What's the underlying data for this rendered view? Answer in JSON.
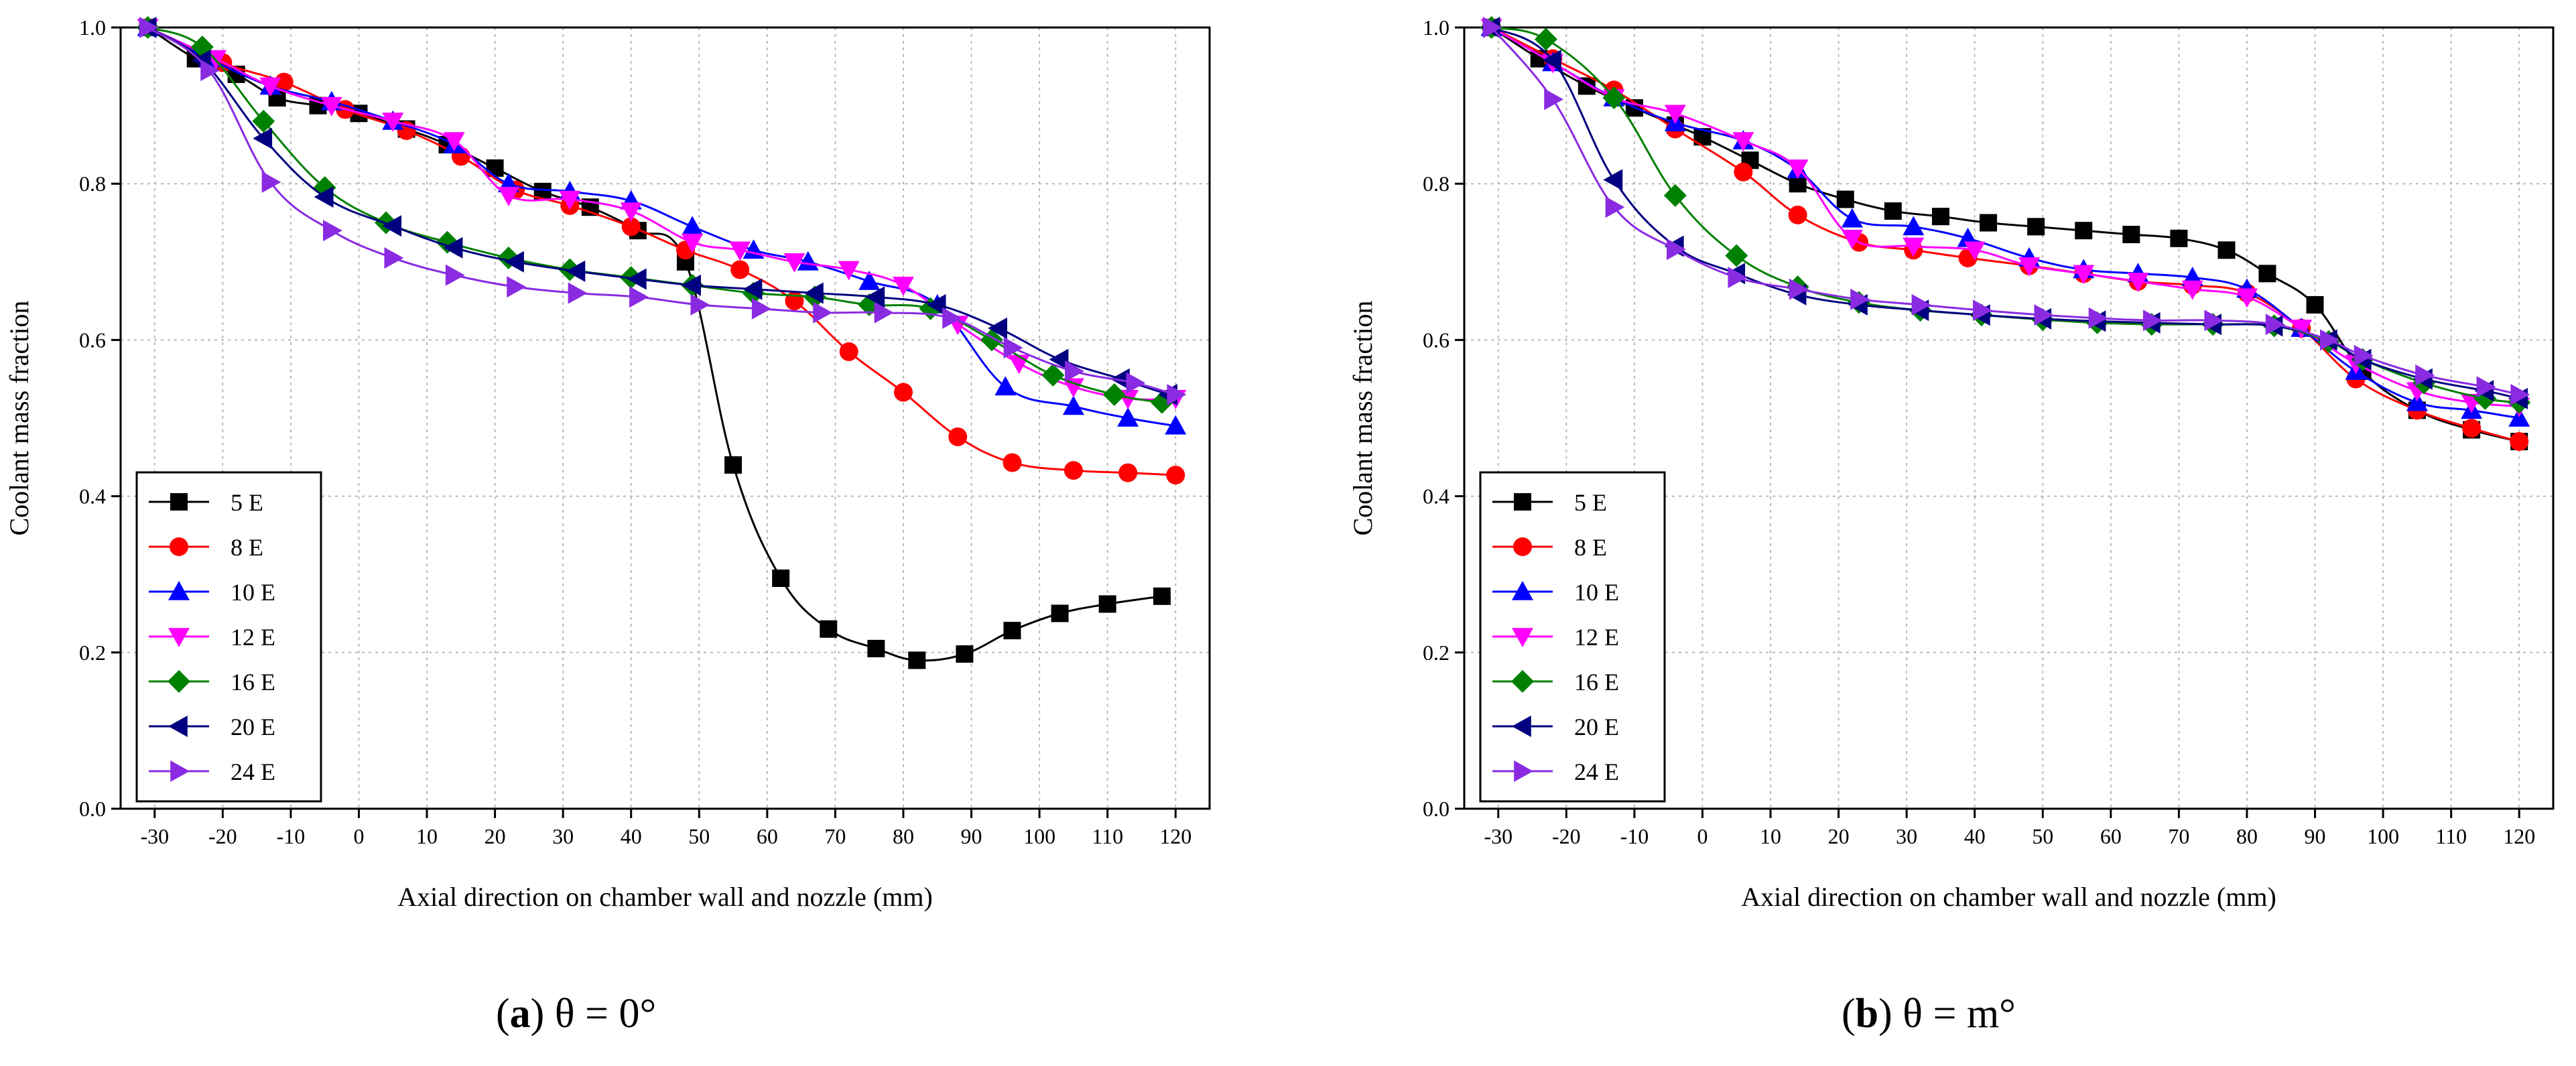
{
  "captions": [
    {
      "letter": "a",
      "text": " θ = 0°"
    },
    {
      "letter": "b",
      "text": " θ = m°"
    }
  ],
  "chart_data": [
    {
      "type": "line",
      "xlabel": "Axial direction on chamber wall and nozzle (mm)",
      "ylabel": "Coolant mass fraction",
      "xlim": [
        -35,
        125
      ],
      "ylim": [
        0,
        1
      ],
      "xticks": [
        -30,
        -20,
        -10,
        0,
        10,
        20,
        30,
        40,
        50,
        60,
        70,
        80,
        90,
        100,
        110,
        120
      ],
      "yticks": [
        0.0,
        0.2,
        0.4,
        0.6,
        0.8,
        1.0
      ],
      "grid": true,
      "legend_position": "bottom-left",
      "series": [
        {
          "name": "5 E",
          "color": "#000000",
          "marker": "square",
          "x": [
            -31,
            -24,
            -18,
            -12,
            -6,
            0,
            7,
            13,
            20,
            27,
            34,
            41,
            48,
            55,
            62,
            69,
            76,
            82,
            89,
            96,
            103,
            110,
            118
          ],
          "y": [
            1.0,
            0.96,
            0.94,
            0.91,
            0.9,
            0.89,
            0.87,
            0.85,
            0.82,
            0.79,
            0.77,
            0.74,
            0.7,
            0.44,
            0.295,
            0.23,
            0.205,
            0.19,
            0.198,
            0.228,
            0.25,
            0.262,
            0.272
          ]
        },
        {
          "name": "8 E",
          "color": "#ff0000",
          "marker": "circle",
          "x": [
            -31,
            -20,
            -11,
            -2,
            7,
            15,
            23,
            31,
            40,
            48,
            56,
            64,
            72,
            80,
            88,
            96,
            105,
            113,
            120
          ],
          "y": [
            1.0,
            0.955,
            0.93,
            0.895,
            0.868,
            0.835,
            0.792,
            0.772,
            0.745,
            0.715,
            0.69,
            0.65,
            0.585,
            0.533,
            0.476,
            0.443,
            0.433,
            0.43,
            0.427
          ]
        },
        {
          "name": "10 E",
          "color": "#0000ff",
          "marker": "triangle-up",
          "x": [
            -31,
            -22,
            -13,
            -4,
            5,
            14,
            22,
            31,
            40,
            49,
            58,
            66,
            75,
            85,
            95,
            105,
            113,
            120
          ],
          "y": [
            1.0,
            0.96,
            0.925,
            0.905,
            0.88,
            0.85,
            0.8,
            0.79,
            0.778,
            0.745,
            0.715,
            0.7,
            0.675,
            0.645,
            0.54,
            0.515,
            0.5,
            0.49
          ]
        },
        {
          "name": "12 E",
          "color": "#ff00ff",
          "marker": "triangle-down",
          "x": [
            -31,
            -21,
            -13,
            -4,
            5,
            14,
            22,
            31,
            40,
            49,
            56,
            64,
            72,
            80,
            88,
            97,
            105,
            113,
            120
          ],
          "y": [
            1.0,
            0.96,
            0.925,
            0.9,
            0.88,
            0.855,
            0.785,
            0.78,
            0.765,
            0.725,
            0.715,
            0.7,
            0.69,
            0.67,
            0.62,
            0.57,
            0.54,
            0.525,
            0.525
          ]
        },
        {
          "name": "16 E",
          "color": "#008000",
          "marker": "diamond",
          "x": [
            -31,
            -23,
            -14,
            -5,
            4,
            13,
            22,
            31,
            40,
            49,
            58,
            67,
            75,
            84,
            93,
            102,
            111,
            118
          ],
          "y": [
            1.0,
            0.975,
            0.88,
            0.795,
            0.75,
            0.725,
            0.705,
            0.69,
            0.68,
            0.67,
            0.66,
            0.655,
            0.645,
            0.64,
            0.6,
            0.555,
            0.53,
            0.52
          ]
        },
        {
          "name": "20 E",
          "color": "#000080",
          "marker": "triangle-left",
          "x": [
            -31,
            -23,
            -14,
            -5,
            5,
            14,
            23,
            32,
            41,
            49,
            58,
            67,
            76,
            85,
            94,
            103,
            112,
            119
          ],
          "y": [
            1.0,
            0.958,
            0.858,
            0.783,
            0.746,
            0.718,
            0.7,
            0.688,
            0.678,
            0.67,
            0.665,
            0.66,
            0.655,
            0.645,
            0.615,
            0.575,
            0.55,
            0.53
          ]
        },
        {
          "name": "24 E",
          "color": "#8a2be2",
          "marker": "triangle-right",
          "x": [
            -31,
            -22,
            -13,
            -4,
            5,
            14,
            23,
            32,
            41,
            50,
            59,
            68,
            77,
            87,
            96,
            105,
            114,
            120
          ],
          "y": [
            1.0,
            0.945,
            0.802,
            0.74,
            0.705,
            0.683,
            0.668,
            0.66,
            0.655,
            0.645,
            0.64,
            0.635,
            0.635,
            0.628,
            0.59,
            0.56,
            0.545,
            0.53
          ]
        }
      ]
    },
    {
      "type": "line",
      "xlabel": "Axial direction on chamber wall and nozzle (mm)",
      "ylabel": "Coolant mass fraction",
      "xlim": [
        -35,
        125
      ],
      "ylim": [
        0,
        1
      ],
      "xticks": [
        -30,
        -20,
        -10,
        0,
        10,
        20,
        30,
        40,
        50,
        60,
        70,
        80,
        90,
        100,
        110,
        120
      ],
      "yticks": [
        0.0,
        0.2,
        0.4,
        0.6,
        0.8,
        1.0
      ],
      "grid": true,
      "legend_position": "bottom-left",
      "series": [
        {
          "name": "5 E",
          "color": "#000000",
          "marker": "square",
          "x": [
            -31,
            -24,
            -17,
            -10,
            -4,
            0,
            7,
            14,
            21,
            28,
            35,
            42,
            49,
            56,
            63,
            70,
            77,
            83,
            90,
            97,
            105,
            113,
            120
          ],
          "y": [
            1.0,
            0.96,
            0.925,
            0.897,
            0.875,
            0.86,
            0.83,
            0.8,
            0.78,
            0.765,
            0.758,
            0.75,
            0.745,
            0.74,
            0.735,
            0.73,
            0.715,
            0.685,
            0.645,
            0.56,
            0.51,
            0.485,
            0.47
          ]
        },
        {
          "name": "8 E",
          "color": "#ff0000",
          "marker": "circle",
          "x": [
            -31,
            -22,
            -13,
            -4,
            6,
            14,
            23,
            31,
            39,
            48,
            56,
            64,
            72,
            80,
            88,
            96,
            105,
            113,
            120
          ],
          "y": [
            1.0,
            0.96,
            0.92,
            0.87,
            0.815,
            0.76,
            0.725,
            0.715,
            0.705,
            0.695,
            0.685,
            0.675,
            0.67,
            0.66,
            0.615,
            0.55,
            0.51,
            0.487,
            0.47
          ]
        },
        {
          "name": "10 E",
          "color": "#0000ff",
          "marker": "triangle-up",
          "x": [
            -31,
            -22,
            -13,
            -4,
            6,
            14,
            22,
            31,
            39,
            48,
            56,
            64,
            72,
            80,
            88,
            96,
            105,
            113,
            120
          ],
          "y": [
            1.0,
            0.955,
            0.91,
            0.878,
            0.855,
            0.818,
            0.755,
            0.745,
            0.73,
            0.705,
            0.69,
            0.685,
            0.68,
            0.665,
            0.615,
            0.56,
            0.52,
            0.51,
            0.5
          ]
        },
        {
          "name": "12 E",
          "color": "#ff00ff",
          "marker": "triangle-down",
          "x": [
            -31,
            -22,
            -13,
            -4,
            6,
            14,
            22,
            31,
            40,
            48,
            56,
            64,
            72,
            80,
            88,
            96,
            105,
            113,
            120
          ],
          "y": [
            1.0,
            0.955,
            0.91,
            0.89,
            0.855,
            0.82,
            0.73,
            0.72,
            0.715,
            0.695,
            0.685,
            0.675,
            0.665,
            0.655,
            0.615,
            0.57,
            0.535,
            0.52,
            0.515
          ]
        },
        {
          "name": "16 E",
          "color": "#008000",
          "marker": "diamond",
          "x": [
            -31,
            -23,
            -13,
            -4,
            5,
            14,
            23,
            32,
            41,
            50,
            58,
            66,
            75,
            84,
            92,
            97,
            106,
            115,
            120
          ],
          "y": [
            1.0,
            0.985,
            0.91,
            0.785,
            0.708,
            0.668,
            0.648,
            0.638,
            0.632,
            0.626,
            0.622,
            0.62,
            0.62,
            0.618,
            0.598,
            0.575,
            0.545,
            0.525,
            0.52
          ]
        },
        {
          "name": "20 E",
          "color": "#000080",
          "marker": "triangle-left",
          "x": [
            -31,
            -22,
            -13,
            -4,
            5,
            14,
            23,
            32,
            41,
            50,
            58,
            66,
            75,
            84,
            92,
            97,
            106,
            115,
            120
          ],
          "y": [
            1.0,
            0.958,
            0.805,
            0.72,
            0.685,
            0.658,
            0.645,
            0.638,
            0.632,
            0.627,
            0.624,
            0.622,
            0.62,
            0.618,
            0.6,
            0.575,
            0.55,
            0.535,
            0.525
          ]
        },
        {
          "name": "24 E",
          "color": "#8a2be2",
          "marker": "triangle-right",
          "x": [
            -31,
            -22,
            -13,
            -4,
            5,
            14,
            23,
            32,
            41,
            50,
            58,
            66,
            75,
            84,
            92,
            97,
            106,
            115,
            120
          ],
          "y": [
            1.0,
            0.908,
            0.77,
            0.716,
            0.68,
            0.665,
            0.652,
            0.645,
            0.638,
            0.632,
            0.628,
            0.625,
            0.625,
            0.62,
            0.6,
            0.58,
            0.555,
            0.54,
            0.53
          ]
        }
      ]
    }
  ]
}
